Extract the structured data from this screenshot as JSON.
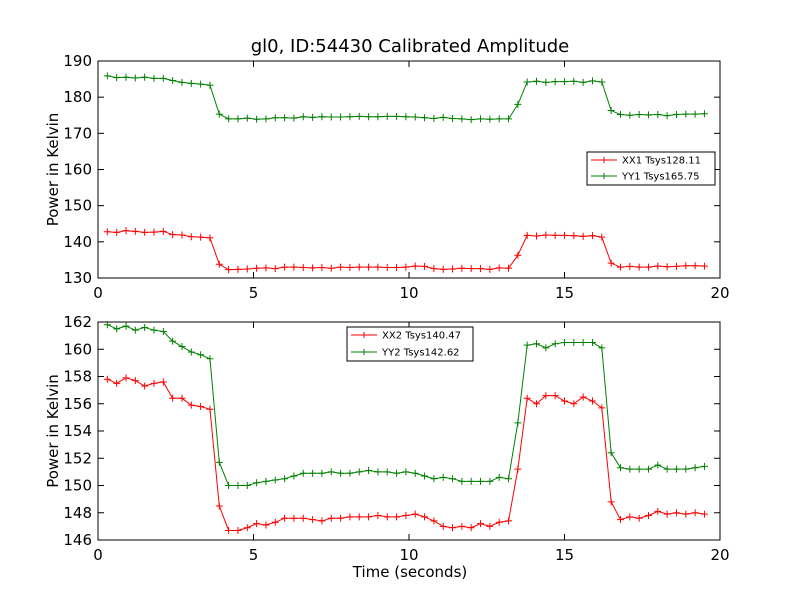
{
  "chart_data": [
    {
      "type": "line",
      "title": "gl0, ID:54430 Calibrated Amplitude",
      "xlabel": "",
      "ylabel": "Power in Kelvin",
      "xlim": [
        0,
        20
      ],
      "ylim": [
        130,
        190
      ],
      "xticks": [
        0,
        5,
        10,
        15,
        20
      ],
      "yticks": [
        130,
        140,
        150,
        160,
        170,
        180,
        190
      ],
      "legend_position": "center-right",
      "x": [
        0.3,
        0.6,
        0.9,
        1.2,
        1.5,
        1.8,
        2.1,
        2.4,
        2.7,
        3.0,
        3.3,
        3.6,
        3.9,
        4.2,
        4.5,
        4.8,
        5.1,
        5.4,
        5.7,
        6.0,
        6.3,
        6.6,
        6.9,
        7.2,
        7.5,
        7.8,
        8.1,
        8.4,
        8.7,
        9.0,
        9.3,
        9.6,
        9.9,
        10.2,
        10.5,
        10.8,
        11.1,
        11.4,
        11.7,
        12.0,
        12.3,
        12.6,
        12.9,
        13.2,
        13.5,
        13.8,
        14.1,
        14.4,
        14.7,
        15.0,
        15.3,
        15.6,
        15.9,
        16.2,
        16.5,
        16.8,
        17.1,
        17.4,
        17.7,
        18.0,
        18.3,
        18.6,
        18.9,
        19.2,
        19.5
      ],
      "series": [
        {
          "name": "XX1 Tsys128.11",
          "color": "#ff0000",
          "values": [
            142.8,
            142.6,
            143.1,
            142.9,
            142.6,
            142.7,
            142.9,
            142.0,
            141.9,
            141.4,
            141.3,
            141.1,
            133.8,
            132.3,
            132.4,
            132.5,
            132.7,
            132.8,
            132.6,
            133.0,
            133.0,
            132.9,
            132.8,
            132.9,
            132.7,
            133.0,
            132.9,
            133.0,
            133.0,
            133.0,
            132.9,
            132.9,
            133.0,
            133.3,
            133.2,
            132.6,
            132.4,
            132.5,
            132.7,
            132.6,
            132.6,
            132.4,
            132.8,
            132.7,
            136.3,
            141.8,
            141.6,
            141.9,
            141.8,
            141.8,
            141.7,
            141.5,
            141.7,
            141.3,
            134.1,
            133.0,
            133.2,
            133.0,
            133.0,
            133.3,
            133.1,
            133.2,
            133.4,
            133.4,
            133.3
          ]
        },
        {
          "name": "YY1 Tsys165.75",
          "color": "#008000",
          "values": [
            185.9,
            185.4,
            185.5,
            185.3,
            185.5,
            185.2,
            185.2,
            184.6,
            184.1,
            183.8,
            183.6,
            183.3,
            175.3,
            174.0,
            174.0,
            174.2,
            173.9,
            174.0,
            174.3,
            174.3,
            174.2,
            174.6,
            174.4,
            174.6,
            174.5,
            174.5,
            174.6,
            174.7,
            174.6,
            174.6,
            174.7,
            174.7,
            174.6,
            174.5,
            174.3,
            174.1,
            174.4,
            174.1,
            174.0,
            173.8,
            174.0,
            173.9,
            174.0,
            174.0,
            178.0,
            184.2,
            184.4,
            184.1,
            184.3,
            184.3,
            184.4,
            184.1,
            184.5,
            184.2,
            176.3,
            175.2,
            175.0,
            175.2,
            175.1,
            175.2,
            174.9,
            175.2,
            175.3,
            175.3,
            175.4
          ]
        }
      ]
    },
    {
      "type": "line",
      "title": "",
      "xlabel": "Time (seconds)",
      "ylabel": "Power in Kelvin",
      "xlim": [
        0,
        20
      ],
      "ylim": [
        146,
        162
      ],
      "xticks": [
        0,
        5,
        10,
        15,
        20
      ],
      "yticks": [
        146,
        148,
        150,
        152,
        154,
        156,
        158,
        160,
        162
      ],
      "legend_position": "upper-center",
      "x": [
        0.3,
        0.6,
        0.9,
        1.2,
        1.5,
        1.8,
        2.1,
        2.4,
        2.7,
        3.0,
        3.3,
        3.6,
        3.9,
        4.2,
        4.5,
        4.8,
        5.1,
        5.4,
        5.7,
        6.0,
        6.3,
        6.6,
        6.9,
        7.2,
        7.5,
        7.8,
        8.1,
        8.4,
        8.7,
        9.0,
        9.3,
        9.6,
        9.9,
        10.2,
        10.5,
        10.8,
        11.1,
        11.4,
        11.7,
        12.0,
        12.3,
        12.6,
        12.9,
        13.2,
        13.5,
        13.8,
        14.1,
        14.4,
        14.7,
        15.0,
        15.3,
        15.6,
        15.9,
        16.2,
        16.5,
        16.8,
        17.1,
        17.4,
        17.7,
        18.0,
        18.3,
        18.6,
        18.9,
        19.2,
        19.5
      ],
      "series": [
        {
          "name": "XX2 Tsys140.47",
          "color": "#ff0000",
          "values": [
            157.8,
            157.5,
            157.9,
            157.7,
            157.3,
            157.5,
            157.6,
            156.4,
            156.4,
            155.9,
            155.8,
            155.6,
            148.5,
            146.7,
            146.7,
            146.9,
            147.2,
            147.1,
            147.3,
            147.6,
            147.6,
            147.6,
            147.5,
            147.4,
            147.6,
            147.6,
            147.7,
            147.7,
            147.7,
            147.8,
            147.7,
            147.7,
            147.8,
            147.9,
            147.7,
            147.4,
            147.0,
            146.9,
            147.0,
            146.9,
            147.2,
            147.0,
            147.3,
            147.4,
            151.2,
            156.4,
            156.0,
            156.6,
            156.6,
            156.2,
            156.0,
            156.5,
            156.2,
            155.7,
            148.8,
            147.5,
            147.7,
            147.6,
            147.8,
            148.1,
            147.9,
            148.0,
            147.9,
            148.0,
            147.9
          ]
        },
        {
          "name": "YY2 Tsys142.62",
          "color": "#008000",
          "values": [
            161.8,
            161.5,
            161.7,
            161.4,
            161.6,
            161.4,
            161.3,
            160.6,
            160.2,
            159.8,
            159.6,
            159.3,
            151.7,
            150.0,
            150.0,
            150.0,
            150.2,
            150.3,
            150.4,
            150.5,
            150.7,
            150.9,
            150.9,
            150.9,
            151.0,
            150.9,
            150.9,
            151.0,
            151.1,
            151.0,
            151.0,
            150.9,
            151.0,
            150.9,
            150.7,
            150.5,
            150.6,
            150.5,
            150.3,
            150.3,
            150.3,
            150.3,
            150.6,
            150.5,
            154.6,
            160.3,
            160.4,
            160.1,
            160.4,
            160.5,
            160.5,
            160.5,
            160.5,
            160.1,
            152.4,
            151.3,
            151.2,
            151.2,
            151.2,
            151.5,
            151.2,
            151.2,
            151.2,
            151.3,
            151.4
          ]
        }
      ]
    }
  ]
}
